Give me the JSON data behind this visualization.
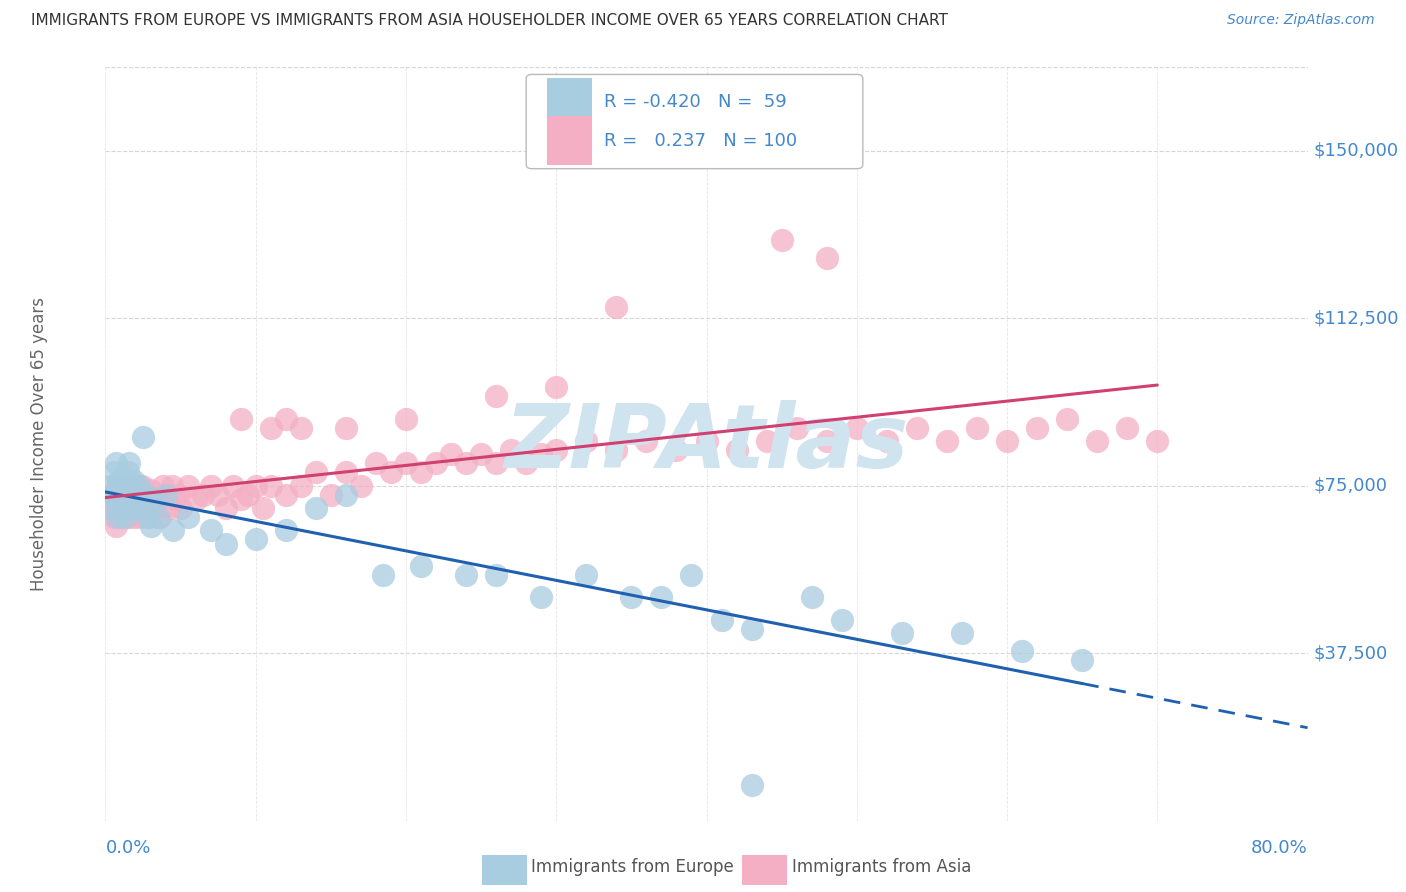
{
  "title": "IMMIGRANTS FROM EUROPE VS IMMIGRANTS FROM ASIA HOUSEHOLDER INCOME OVER 65 YEARS CORRELATION CHART",
  "source": "Source: ZipAtlas.com",
  "ylabel": "Householder Income Over 65 years",
  "ytick_labels": [
    "$37,500",
    "$75,000",
    "$112,500",
    "$150,000"
  ],
  "ytick_values": [
    37500,
    75000,
    112500,
    150000
  ],
  "ymin": 0,
  "ymax": 168750,
  "xmin": 0.0,
  "xmax": 0.8,
  "europe_R": -0.42,
  "europe_N": 59,
  "asia_R": 0.237,
  "asia_N": 100,
  "europe_color": "#a8cce0",
  "asia_color": "#f4afc5",
  "europe_line_color": "#2060b0",
  "asia_line_color": "#d04070",
  "background_color": "#ffffff",
  "grid_color": "#cccccc",
  "title_color": "#333333",
  "right_axis_color": "#4488cc",
  "watermark_color": "#d0e4f0",
  "legend_europe_label": "Immigrants from Europe",
  "legend_asia_label": "Immigrants from Asia",
  "europe_x": [
    0.004,
    0.005,
    0.006,
    0.007,
    0.007,
    0.008,
    0.008,
    0.009,
    0.009,
    0.01,
    0.011,
    0.011,
    0.012,
    0.012,
    0.013,
    0.013,
    0.014,
    0.015,
    0.015,
    0.016,
    0.017,
    0.018,
    0.019,
    0.02,
    0.022,
    0.023,
    0.025,
    0.027,
    0.028,
    0.03,
    0.032,
    0.035,
    0.04,
    0.045,
    0.055,
    0.07,
    0.08,
    0.1,
    0.12,
    0.14,
    0.16,
    0.185,
    0.21,
    0.24,
    0.26,
    0.29,
    0.32,
    0.35,
    0.37,
    0.39,
    0.41,
    0.43,
    0.47,
    0.49,
    0.53,
    0.57,
    0.61,
    0.65,
    0.43
  ],
  "europe_y": [
    75000,
    73000,
    78000,
    70000,
    80000,
    72000,
    68000,
    74000,
    76000,
    73000,
    70000,
    75000,
    72000,
    77000,
    68000,
    74000,
    71000,
    78000,
    72000,
    80000,
    73000,
    70000,
    76000,
    72000,
    75000,
    70000,
    86000,
    73000,
    68000,
    66000,
    72000,
    68000,
    73000,
    65000,
    68000,
    65000,
    62000,
    63000,
    65000,
    70000,
    73000,
    55000,
    57000,
    55000,
    55000,
    50000,
    55000,
    50000,
    50000,
    55000,
    45000,
    43000,
    50000,
    45000,
    42000,
    42000,
    38000,
    36000,
    8000
  ],
  "asia_x": [
    0.004,
    0.005,
    0.006,
    0.007,
    0.007,
    0.008,
    0.008,
    0.009,
    0.01,
    0.011,
    0.012,
    0.013,
    0.014,
    0.015,
    0.016,
    0.017,
    0.018,
    0.019,
    0.02,
    0.021,
    0.022,
    0.023,
    0.024,
    0.025,
    0.026,
    0.027,
    0.028,
    0.03,
    0.032,
    0.034,
    0.036,
    0.038,
    0.04,
    0.042,
    0.044,
    0.046,
    0.048,
    0.05,
    0.055,
    0.06,
    0.065,
    0.07,
    0.075,
    0.08,
    0.085,
    0.09,
    0.095,
    0.1,
    0.105,
    0.11,
    0.12,
    0.13,
    0.14,
    0.15,
    0.16,
    0.17,
    0.18,
    0.19,
    0.2,
    0.21,
    0.22,
    0.23,
    0.24,
    0.25,
    0.26,
    0.27,
    0.28,
    0.29,
    0.3,
    0.32,
    0.34,
    0.36,
    0.38,
    0.4,
    0.42,
    0.44,
    0.46,
    0.48,
    0.5,
    0.52,
    0.54,
    0.56,
    0.58,
    0.6,
    0.62,
    0.64,
    0.66,
    0.68,
    0.7,
    0.45,
    0.48,
    0.26,
    0.3,
    0.34,
    0.2,
    0.12,
    0.16,
    0.09,
    0.11,
    0.13
  ],
  "asia_y": [
    70000,
    73000,
    68000,
    72000,
    66000,
    75000,
    70000,
    73000,
    68000,
    74000,
    72000,
    70000,
    75000,
    68000,
    73000,
    70000,
    72000,
    68000,
    75000,
    70000,
    73000,
    68000,
    75000,
    72000,
    70000,
    73000,
    68000,
    74000,
    70000,
    72000,
    68000,
    75000,
    73000,
    70000,
    75000,
    72000,
    73000,
    70000,
    75000,
    72000,
    73000,
    75000,
    73000,
    70000,
    75000,
    72000,
    73000,
    75000,
    70000,
    75000,
    73000,
    75000,
    78000,
    73000,
    78000,
    75000,
    80000,
    78000,
    80000,
    78000,
    80000,
    82000,
    80000,
    82000,
    80000,
    83000,
    80000,
    82000,
    83000,
    85000,
    83000,
    85000,
    83000,
    85000,
    83000,
    85000,
    88000,
    85000,
    88000,
    85000,
    88000,
    85000,
    88000,
    85000,
    88000,
    90000,
    85000,
    88000,
    85000,
    130000,
    126000,
    95000,
    97000,
    115000,
    90000,
    90000,
    88000,
    90000,
    88000,
    88000
  ]
}
